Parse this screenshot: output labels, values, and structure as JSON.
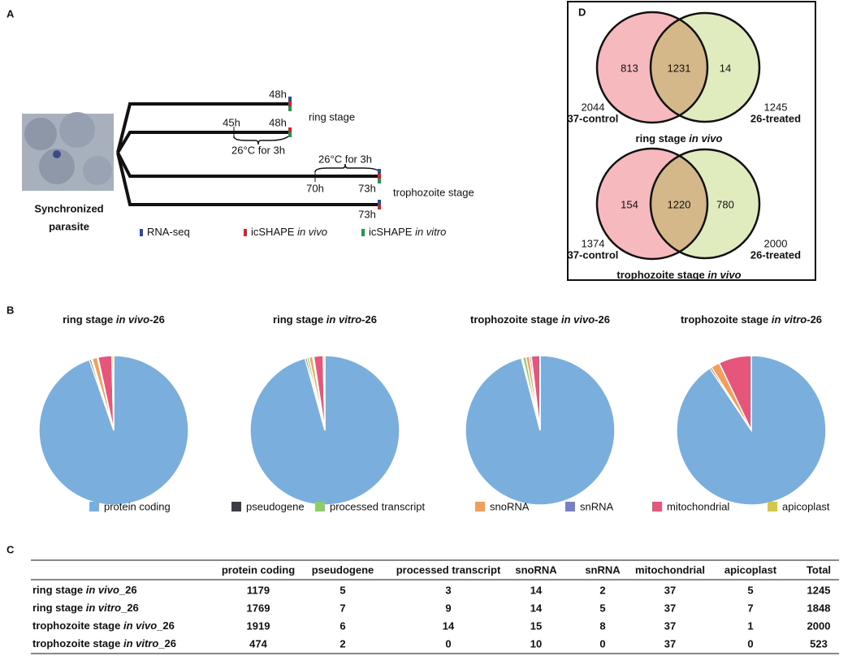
{
  "panels": [
    "A",
    "B",
    "C",
    "D"
  ],
  "diagram": {
    "texts": [
      "48h",
      "45h",
      "48h",
      "26°C for 3h",
      "ring stage",
      "26°C for 3h",
      "70h",
      "73h",
      "trophozoite stage",
      "73h"
    ],
    "sample": [
      "Synchronized",
      "parasite"
    ],
    "legend": [
      {
        "label": [
          "RNA-seq"
        ],
        "color": "#2b4aa0"
      },
      {
        "label": [
          "icSHAPE ",
          "in vivo"
        ],
        "color": "#d8232a"
      },
      {
        "label": [
          "icSHAPE ",
          "in vitro"
        ],
        "color": "#1f9a48"
      }
    ]
  },
  "legend": {
    "categories": [
      "protein coding",
      "pseudogene",
      "processed transcript",
      "snoRNA",
      "snRNA",
      "mitochondrial",
      "apicoplast"
    ],
    "colors": [
      "#7aaedc",
      "#3c3c46",
      "#8fcc6e",
      "#f0a05a",
      "#7b7fc4",
      "#e5567a",
      "#d4c84a"
    ]
  },
  "chart_data": [
    {
      "type": "pie",
      "title": [
        "ring stage ",
        "in vivo",
        "-26"
      ],
      "values": [
        1179,
        5,
        3,
        14,
        2,
        37,
        5
      ]
    },
    {
      "type": "pie",
      "title": [
        "ring stage ",
        "in vitro",
        "-26"
      ],
      "values": [
        1769,
        7,
        9,
        14,
        5,
        37,
        7
      ]
    },
    {
      "type": "pie",
      "title": [
        "trophozoite stage ",
        "in vivo",
        "-26"
      ],
      "values": [
        1919,
        6,
        14,
        15,
        8,
        37,
        1
      ]
    },
    {
      "type": "pie",
      "title": [
        "trophozoite stage ",
        "in vitro",
        "-26"
      ],
      "values": [
        474,
        2,
        0,
        10,
        0,
        37,
        0
      ]
    }
  ],
  "table": {
    "header": [
      "protein coding",
      "pseudogene",
      "processed transcript",
      "snoRNA",
      "snRNA",
      "mitochondrial",
      "apicoplast",
      "Total"
    ],
    "rows": [
      {
        "label": [
          "ring stage ",
          "in vivo",
          "_26"
        ],
        "cells": [
          1179,
          5,
          3,
          14,
          2,
          37,
          5,
          1245
        ]
      },
      {
        "label": [
          "ring stage ",
          "in vitro",
          "_26"
        ],
        "cells": [
          1769,
          7,
          9,
          14,
          5,
          37,
          7,
          1848
        ]
      },
      {
        "label": [
          "trophozoite stage ",
          "in vivo",
          "_26"
        ],
        "cells": [
          1919,
          6,
          14,
          15,
          8,
          37,
          1,
          2000
        ]
      },
      {
        "label": [
          "trophozoite stage ",
          "in vitro",
          "_26"
        ],
        "cells": [
          474,
          2,
          0,
          10,
          0,
          37,
          0,
          523
        ]
      }
    ]
  },
  "venn": [
    {
      "left": {
        "total": 2044,
        "label": "37-control",
        "only": 813
      },
      "both": 1231,
      "right": {
        "total": 1245,
        "label": "26-treated",
        "only": 14
      },
      "caption": [
        "ring stage ",
        "in vivo"
      ]
    },
    {
      "left": {
        "total": 1374,
        "label": "37-control",
        "only": 154
      },
      "both": 1220,
      "right": {
        "total": 2000,
        "label": "26-treated",
        "only": 780
      },
      "caption": [
        "trophozoite stage ",
        "in vivo"
      ]
    }
  ]
}
